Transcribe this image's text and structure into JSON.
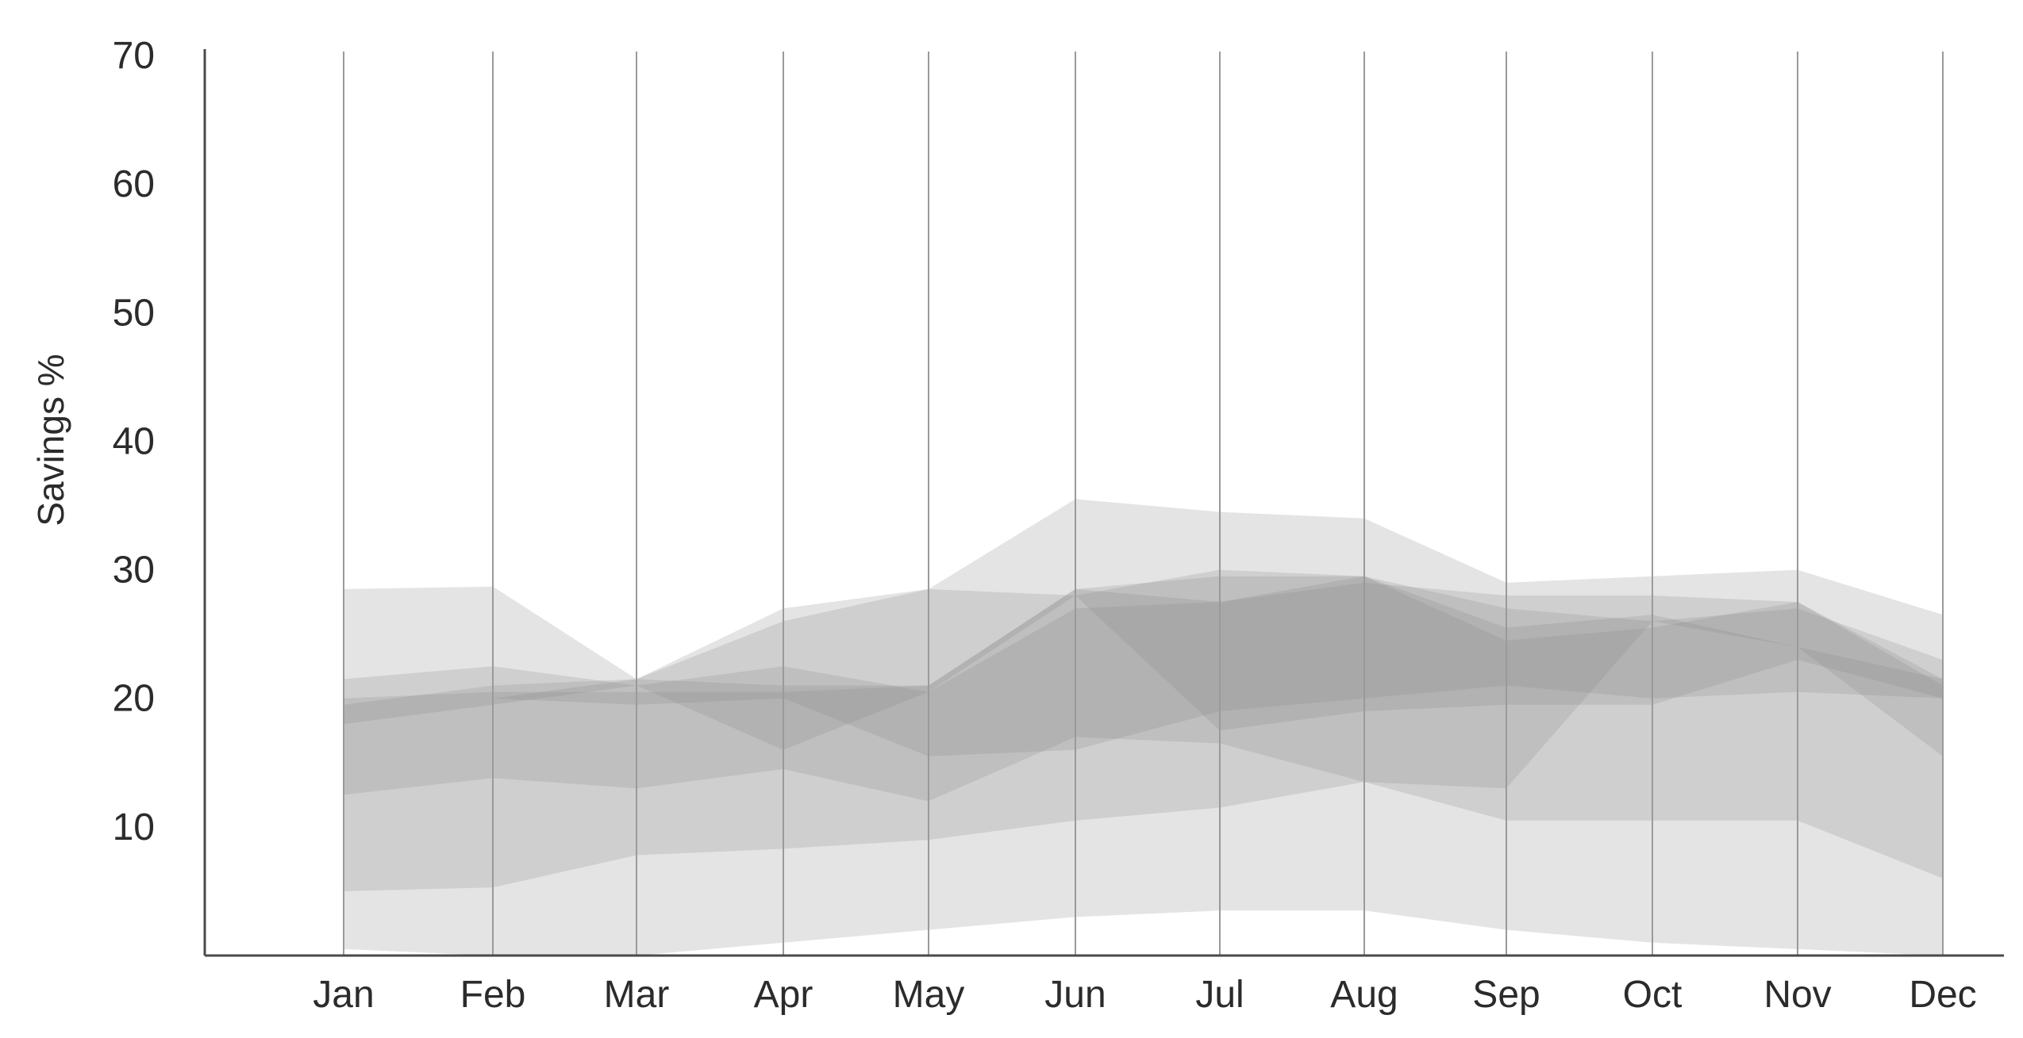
{
  "chart_data": {
    "type": "area",
    "title": "",
    "xlabel": "",
    "ylabel": "Savings %",
    "categories": [
      "Jan",
      "Feb",
      "Mar",
      "Apr",
      "May",
      "Jun",
      "Jul",
      "Aug",
      "Sep",
      "Oct",
      "Nov",
      "Dec"
    ],
    "yticks": [
      10,
      20,
      30,
      40,
      50,
      60,
      70
    ],
    "ylim": [
      0,
      70
    ],
    "grid": "vertical",
    "colors": {
      "band": "#8c8c8c",
      "grid": "#9a9a9a",
      "axis": "#4a4a4a",
      "text": "#2b2b2b"
    },
    "series": [
      {
        "lower": [
          0.5,
          0.0,
          0.0,
          1.0,
          2.0,
          3.0,
          3.5,
          3.5,
          2.0,
          1.0,
          0.5,
          0.0
        ],
        "upper": [
          28.5,
          28.7,
          21.5,
          27.0,
          28.5,
          35.5,
          34.5,
          34.0,
          29.0,
          29.5,
          30.0,
          26.5
        ]
      },
      {
        "lower": [
          5.0,
          5.3,
          7.8,
          8.3,
          9.0,
          10.5,
          11.5,
          13.5,
          10.5,
          10.5,
          10.5,
          6.0
        ],
        "upper": [
          21.5,
          22.5,
          21.0,
          22.5,
          20.5,
          27.0,
          27.5,
          29.0,
          28.0,
          28.0,
          27.5,
          21.0
        ]
      },
      {
        "lower": [
          12.5,
          13.8,
          13.0,
          14.5,
          12.0,
          17.0,
          16.5,
          13.5,
          13.0,
          26.0,
          24.0,
          15.5
        ],
        "upper": [
          17.5,
          20.0,
          21.5,
          26.0,
          28.5,
          28.0,
          30.0,
          29.5,
          27.0,
          26.0,
          27.0,
          23.0
        ]
      },
      {
        "lower": [
          17.5,
          20.0,
          19.5,
          20.0,
          15.5,
          16.0,
          19.0,
          20.0,
          21.0,
          20.0,
          20.5,
          20.0
        ],
        "upper": [
          20.0,
          20.5,
          20.5,
          20.5,
          21.0,
          28.5,
          29.5,
          29.5,
          24.5,
          25.5,
          27.5,
          21.5
        ]
      },
      {
        "lower": [
          18.0,
          19.5,
          21.0,
          16.0,
          20.5,
          28.0,
          17.5,
          19.0,
          19.5,
          19.5,
          23.0,
          20.0
        ],
        "upper": [
          19.5,
          21.0,
          21.5,
          21.0,
          21.0,
          28.5,
          27.5,
          29.5,
          25.5,
          26.5,
          24.0,
          21.5
        ]
      }
    ]
  }
}
